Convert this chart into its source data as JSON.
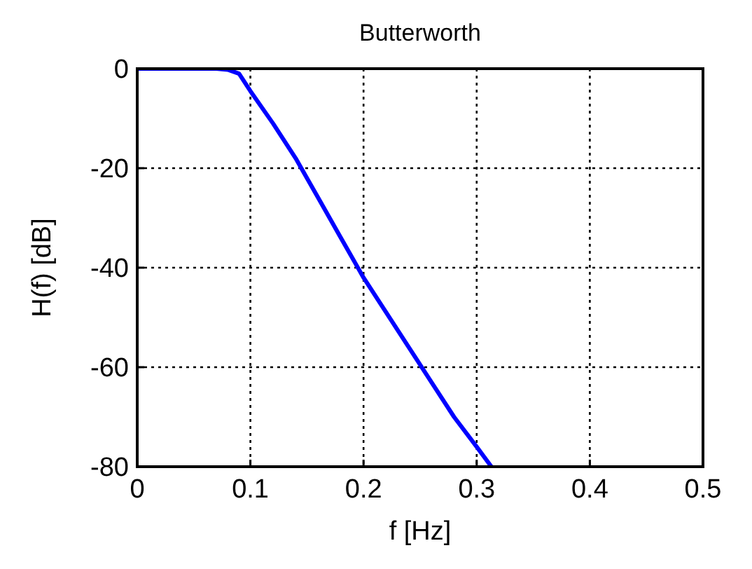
{
  "chart_data": {
    "type": "line",
    "title": "Butterworth",
    "xlabel": "f [Hz]",
    "ylabel": "H(f) [dB]",
    "xlim": [
      0,
      0.5
    ],
    "ylim": [
      -80,
      0
    ],
    "xticks": [
      0,
      0.1,
      0.2,
      0.3,
      0.4,
      0.5
    ],
    "yticks": [
      -80,
      -60,
      -40,
      -20,
      0
    ],
    "grid": true,
    "marker": "none",
    "line_style": "solid",
    "series": [
      {
        "color": "#0000ff",
        "x": [
          0,
          0.07,
          0.08,
          0.09,
          0.1,
          0.12,
          0.14,
          0.16,
          0.18,
          0.2,
          0.22,
          0.24,
          0.26,
          0.28,
          0.3,
          0.313
        ],
        "values": [
          0,
          0,
          -0.2,
          -1,
          -4.5,
          -11,
          -18,
          -26,
          -34,
          -42,
          -49,
          -56,
          -63,
          -70,
          -76,
          -80
        ]
      }
    ]
  }
}
